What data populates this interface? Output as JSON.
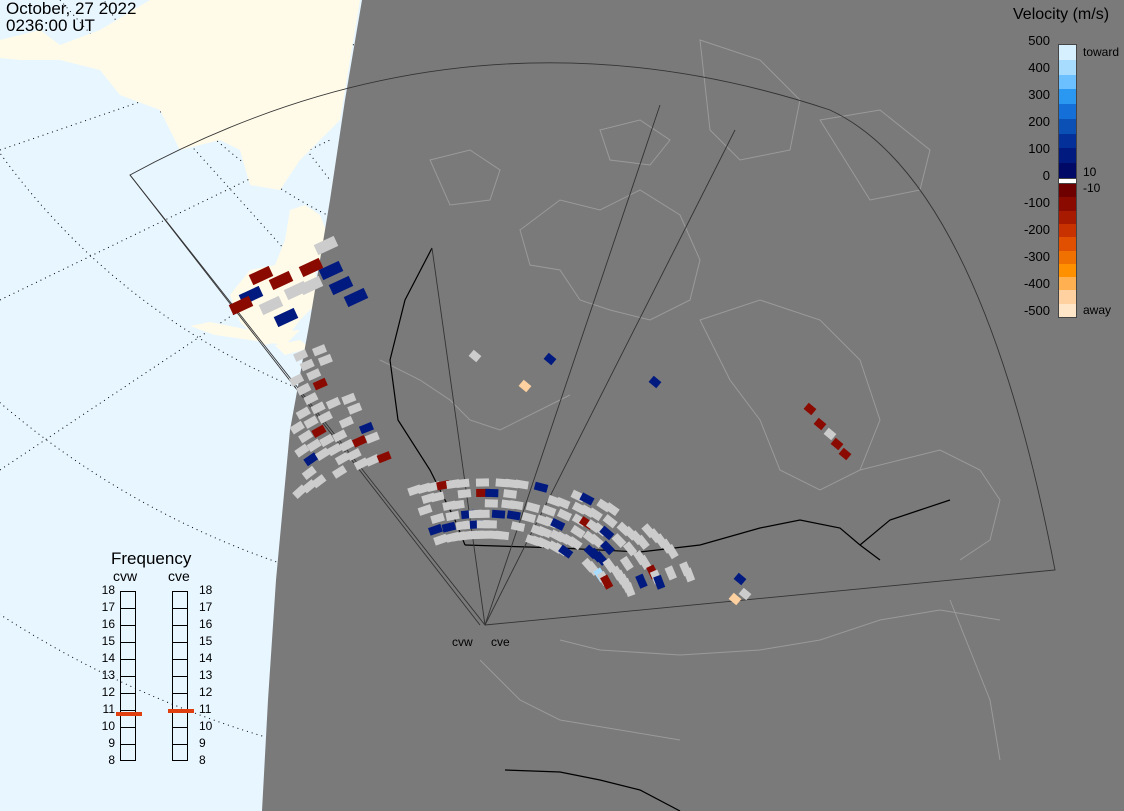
{
  "header": {
    "date": "October, 27 2022",
    "time": "0236:00 UT"
  },
  "legend": {
    "title": "Velocity (m/s)",
    "ticks": [
      "500",
      "400",
      "300",
      "200",
      "100",
      "0",
      "-100",
      "-200",
      "-300",
      "-400",
      "-500"
    ],
    "toward_label": "toward",
    "away_label": "away",
    "pos_threshold": "10",
    "neg_threshold": "-10",
    "colors_toward": [
      "#d6f0ff",
      "#a8dcff",
      "#6cc0ff",
      "#2a98f0",
      "#1470d8",
      "#0b50b4",
      "#04309a",
      "#001a80",
      "#000a66"
    ],
    "colors_away": [
      "#6e0000",
      "#8a0a00",
      "#a81a00",
      "#c83200",
      "#e05000",
      "#f07000",
      "#ff9000",
      "#ffb050",
      "#ffd0a0",
      "#ffe6c8"
    ]
  },
  "frequency": {
    "title": "Frequency",
    "radars": [
      {
        "name": "cvw",
        "mhz": 10.8
      },
      {
        "name": "cve",
        "mhz": 11.0
      }
    ],
    "scale": [
      "18",
      "17",
      "16",
      "15",
      "14",
      "13",
      "12",
      "11",
      "10",
      "9",
      "8"
    ],
    "marker_color": "#e04010"
  },
  "radar_sites": [
    "cvw",
    "cve"
  ],
  "map": {
    "colors": {
      "ocean_day": "#e8f6ff",
      "land_day": "#fffbe8",
      "night": "#7a7a7a",
      "border": "#000000",
      "coast_night": "#9a9a9a",
      "fov": "#333333",
      "ground_scatter": "#cccccc"
    }
  }
}
